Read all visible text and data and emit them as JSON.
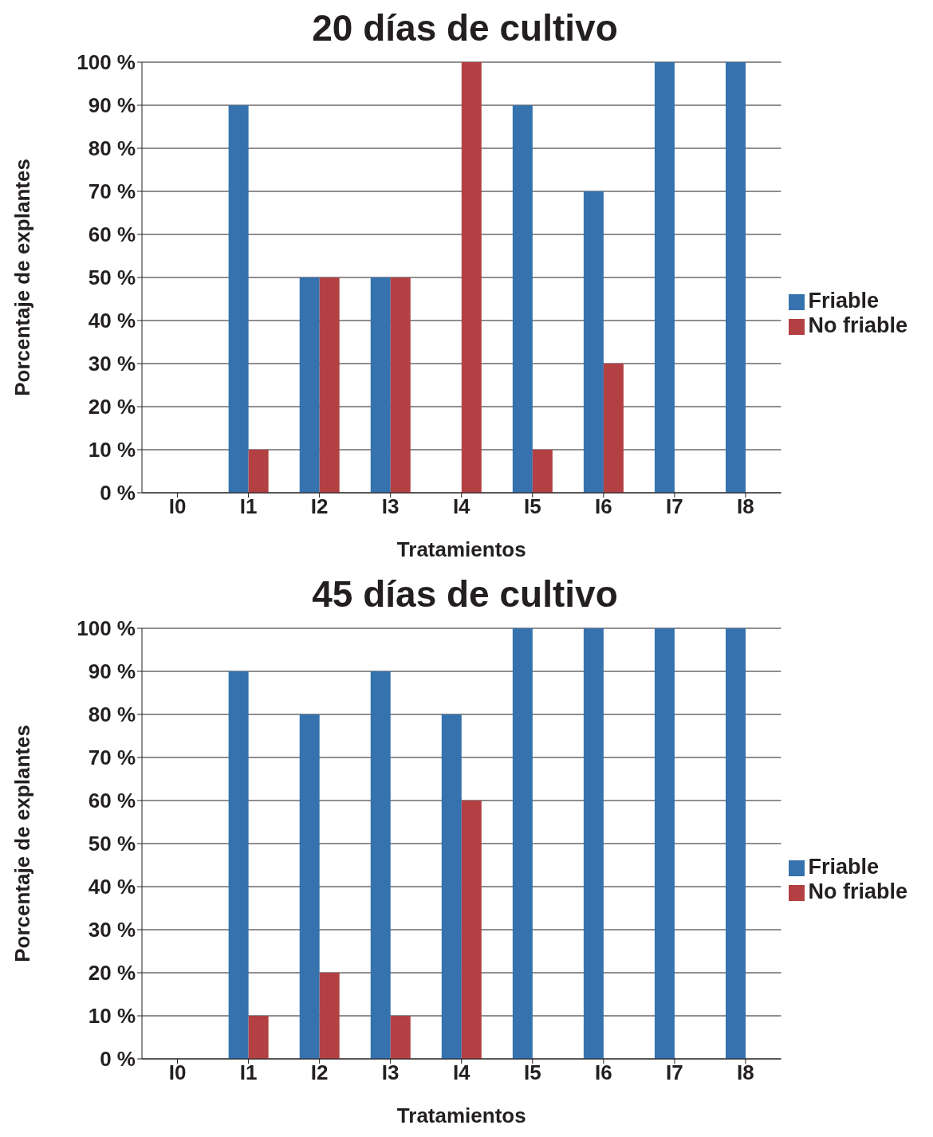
{
  "chart_data": [
    {
      "type": "bar",
      "title": "20 días de cultivo",
      "xlabel": "Tratamientos",
      "ylabel": "Porcentaje de explantes",
      "categories": [
        "I0",
        "I1",
        "I2",
        "I3",
        "I4",
        "I5",
        "I6",
        "I7",
        "I8"
      ],
      "series": [
        {
          "name": "Friable",
          "color": "#3572ae",
          "values": [
            0,
            90,
            50,
            50,
            0,
            90,
            70,
            100,
            100
          ]
        },
        {
          "name": "No friable",
          "color": "#b34043",
          "values": [
            0,
            10,
            50,
            50,
            100,
            10,
            30,
            0,
            0
          ]
        }
      ],
      "ylim": [
        0,
        100
      ],
      "yticks": [
        {
          "value": 0,
          "label": "0 %"
        },
        {
          "value": 10,
          "label": "10 %"
        },
        {
          "value": 20,
          "label": "20 %"
        },
        {
          "value": 30,
          "label": "30 %"
        },
        {
          "value": 40,
          "label": "40 %"
        },
        {
          "value": 50,
          "label": "50 %"
        },
        {
          "value": 60,
          "label": "60 %"
        },
        {
          "value": 70,
          "label": "70 %"
        },
        {
          "value": 80,
          "label": "80 %"
        },
        {
          "value": 90,
          "label": "90 %"
        },
        {
          "value": 100,
          "label": "100 %"
        }
      ],
      "grid": "y",
      "legend": "right"
    },
    {
      "type": "bar",
      "title": "45 días de cultivo",
      "xlabel": "Tratamientos",
      "ylabel": "Porcentaje de explantes",
      "categories": [
        "I0",
        "I1",
        "I2",
        "I3",
        "I4",
        "I5",
        "I6",
        "I7",
        "I8"
      ],
      "series": [
        {
          "name": "Friable",
          "color": "#3572ae",
          "values": [
            0,
            90,
            80,
            90,
            80,
            100,
            100,
            100,
            100
          ]
        },
        {
          "name": "No friable",
          "color": "#b34043",
          "values": [
            0,
            10,
            20,
            10,
            60,
            0,
            0,
            0,
            0
          ]
        }
      ],
      "ylim": [
        0,
        100
      ],
      "yticks": [
        {
          "value": 0,
          "label": "0 %"
        },
        {
          "value": 10,
          "label": "10 %"
        },
        {
          "value": 20,
          "label": "20 %"
        },
        {
          "value": 30,
          "label": "30 %"
        },
        {
          "value": 40,
          "label": "40 %"
        },
        {
          "value": 50,
          "label": "50 %"
        },
        {
          "value": 60,
          "label": "60 %"
        },
        {
          "value": 70,
          "label": "70 %"
        },
        {
          "value": 80,
          "label": "80 %"
        },
        {
          "value": 90,
          "label": "90 %"
        },
        {
          "value": 100,
          "label": "100 %"
        }
      ],
      "grid": "y",
      "legend": "right"
    }
  ]
}
